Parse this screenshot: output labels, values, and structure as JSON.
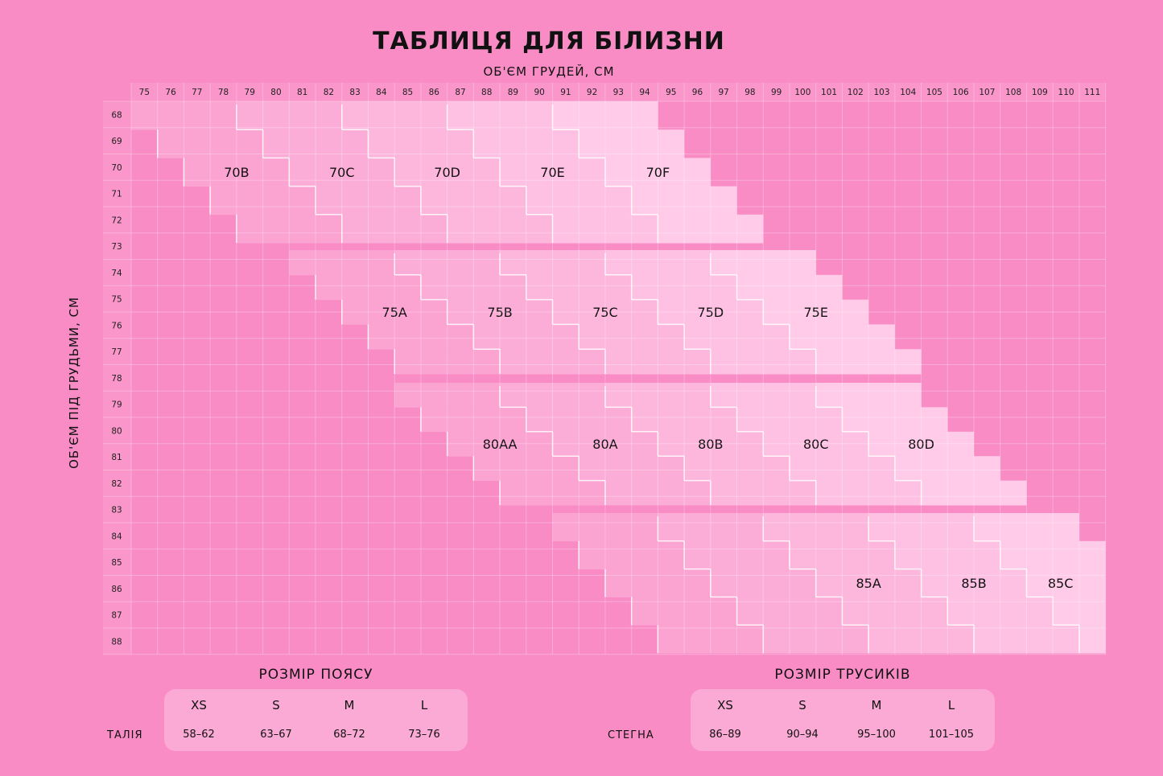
{
  "title": "ТАБЛИЦЯ ДЛЯ БІЛИЗНИ",
  "x_axis_title": "ОБ'ЄМ ГРУДЕЙ, СМ",
  "y_axis_title": "ОБ'ЄМ ПІД ГРУДЬМИ, СМ",
  "columns": [
    "75",
    "76",
    "77",
    "78",
    "79",
    "80",
    "81",
    "82",
    "83",
    "84",
    "85",
    "86",
    "87",
    "88",
    "89",
    "90",
    "91",
    "92",
    "93",
    "94",
    "95",
    "96",
    "97",
    "98",
    "99",
    "100",
    "101",
    "102",
    "103",
    "104",
    "105",
    "106",
    "107",
    "108",
    "109",
    "110",
    "111"
  ],
  "rows": [
    "68",
    "69",
    "70",
    "71",
    "72",
    "73",
    "74",
    "75",
    "76",
    "77",
    "78",
    "79",
    "80",
    "81",
    "82",
    "83",
    "84",
    "85",
    "86",
    "87",
    "88"
  ],
  "size_groups": [
    {
      "band": "70",
      "labels": [
        "70B",
        "70C",
        "70D",
        "70E",
        "70F"
      ]
    },
    {
      "band": "75",
      "labels": [
        "75A",
        "75B",
        "75C",
        "75D",
        "75E"
      ]
    },
    {
      "band": "80",
      "labels": [
        "80AA",
        "80A",
        "80B",
        "80C",
        "80D"
      ]
    },
    {
      "band": "85",
      "labels": [
        "",
        "",
        "85A",
        "85B",
        "85C"
      ]
    }
  ],
  "colors": {
    "background": "#f98cc5",
    "block_start": "#fba3d1",
    "block_end": "#ffcbe9"
  },
  "belt": {
    "title": "РОЗМІР ПОЯСУ",
    "row_label": "ТАЛІЯ",
    "sizes": [
      "XS",
      "S",
      "M",
      "L"
    ],
    "values": [
      "58–62",
      "63–67",
      "68–72",
      "73–76"
    ]
  },
  "panties": {
    "title": "РОЗМІР ТРУСИКІВ",
    "row_label": "СТЕГНА",
    "sizes": [
      "XS",
      "S",
      "M",
      "L"
    ],
    "values": [
      "86–89",
      "90–94",
      "95–100",
      "101–105"
    ]
  }
}
